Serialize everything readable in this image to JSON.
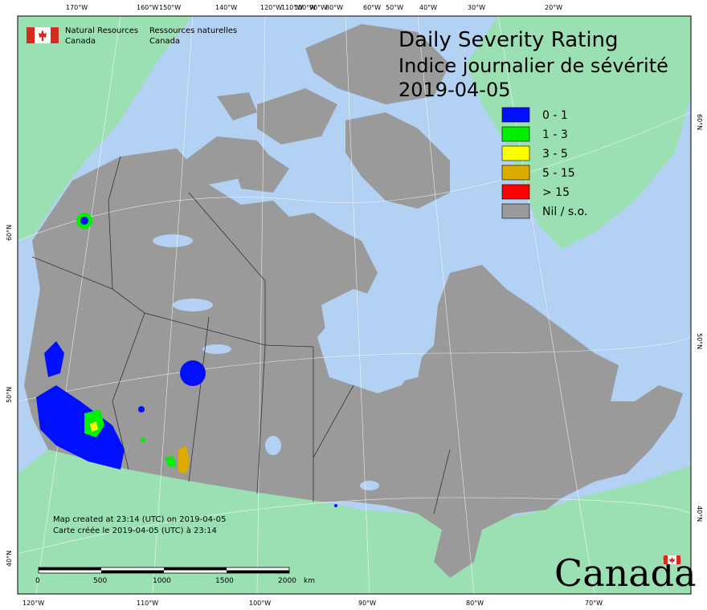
{
  "map": {
    "title_en": "Daily Severity Rating",
    "title_fr": "Indice journalier de sévérité",
    "date": "2019-04-05",
    "agency": {
      "en_line1": "Natural Resources",
      "en_line2": "Canada",
      "fr_line1": "Ressources naturelles",
      "fr_line2": "Canada"
    },
    "legend": [
      {
        "label": "0 - 1",
        "color": "#0010ff"
      },
      {
        "label": "1 - 3",
        "color": "#00ee00"
      },
      {
        "label": "3 - 5",
        "color": "#ffff00"
      },
      {
        "label": "5 - 15",
        "color": "#ddaa00"
      },
      {
        "label": "> 15",
        "color": "#ff0000"
      },
      {
        "label": "Nil / s.o.",
        "color": "#9a9a9a"
      }
    ],
    "created_en": "Map created at 23:14 (UTC) on 2019-04-05",
    "created_fr": "Carte créée le 2019-04-05 (UTC) à 23:14",
    "scale_bar": {
      "labels": [
        "0",
        "500",
        "1000",
        "1500",
        "2000"
      ],
      "unit": "km"
    },
    "wordmark": "Canada",
    "top_ticks": [
      "170°W",
      "160°W",
      "150°W",
      "140°W",
      "120°W",
      "110°W",
      "100°W",
      "90°W",
      "80°W",
      "60°W",
      "50°W",
      "40°W",
      "30°W",
      "20°W"
    ],
    "bottom_ticks": [
      "120°W",
      "110°W",
      "100°W",
      "90°W",
      "80°W",
      "70°W"
    ],
    "left_ticks": [
      "60°N",
      "50°N",
      "40°N"
    ],
    "right_ticks": [
      "60°N",
      "50°N",
      "40°N"
    ],
    "colors": {
      "ocean": "#b3d1f2",
      "foreign_land": "#9be0b3",
      "canada_land": "#9a9a9a",
      "lakes": "#b3d1f2",
      "graticule": "#ffffff"
    }
  }
}
